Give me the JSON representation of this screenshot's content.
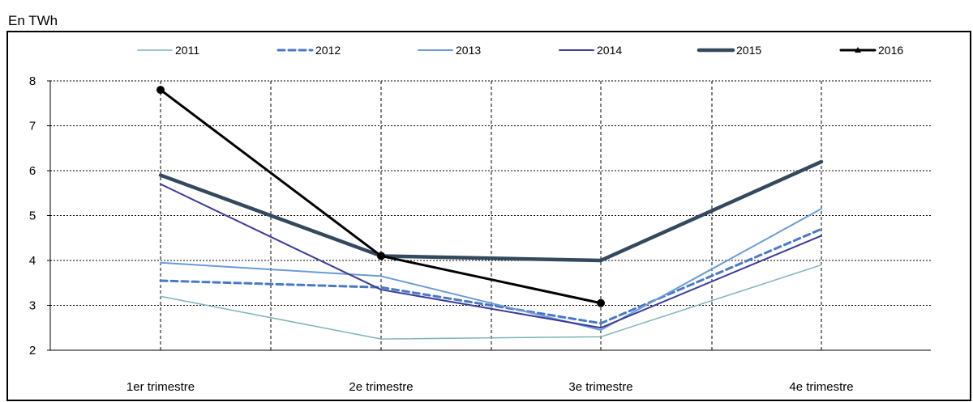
{
  "unit_label": "En TWh",
  "chart_data": {
    "type": "line",
    "categories": [
      "1er trimestre",
      "2e trimestre",
      "3e trimestre",
      "4e trimestre"
    ],
    "ylim": [
      2,
      8
    ],
    "yticks": [
      "2",
      "3",
      "4",
      "5",
      "6",
      "7",
      "8"
    ],
    "grid": "dashed",
    "legend": "top",
    "series": [
      {
        "name": "2011",
        "values": [
          3.2,
          2.25,
          2.3,
          3.9
        ],
        "color": "#7fb3b8",
        "dashed": false,
        "marker": false
      },
      {
        "name": "2012",
        "values": [
          3.55,
          3.4,
          2.6,
          4.7
        ],
        "color": "#4a79c4",
        "dashed": true,
        "marker": false
      },
      {
        "name": "2013",
        "values": [
          3.95,
          3.65,
          2.45,
          5.15
        ],
        "color": "#6a9bd8",
        "dashed": false,
        "marker": false
      },
      {
        "name": "2014",
        "values": [
          5.7,
          3.35,
          2.5,
          4.55
        ],
        "color": "#3c3a98",
        "dashed": false,
        "marker": false
      },
      {
        "name": "2015",
        "values": [
          5.9,
          4.1,
          4.0,
          6.2
        ],
        "color": "#34495e",
        "dashed": false,
        "marker": false
      },
      {
        "name": "2016",
        "values": [
          7.8,
          4.1,
          3.05,
          null
        ],
        "color": "#000000",
        "dashed": false,
        "marker": true
      }
    ]
  }
}
